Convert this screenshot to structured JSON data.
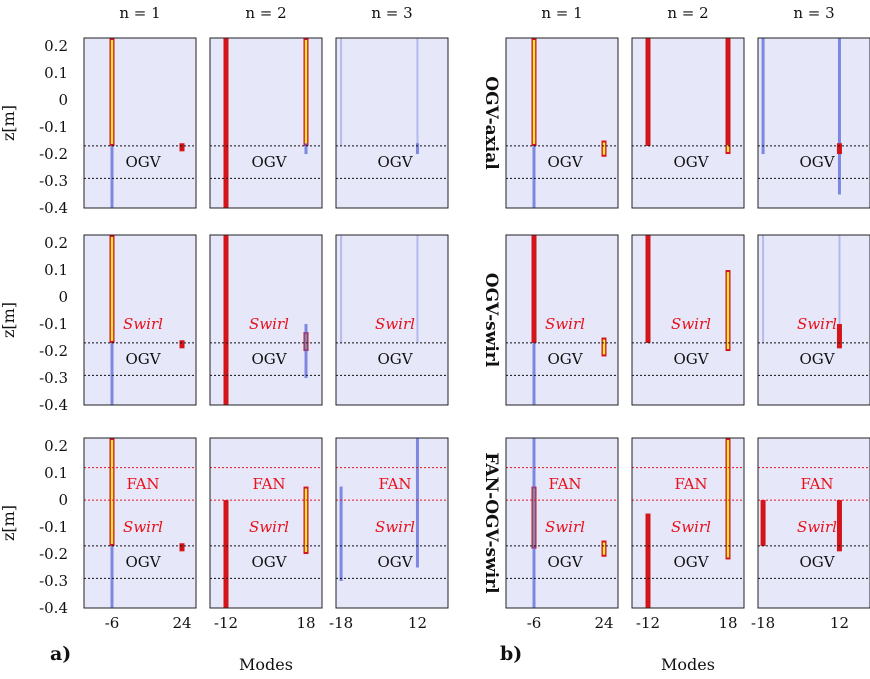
{
  "figure": {
    "col_titles": [
      "n = 1",
      "n = 2",
      "n = 3",
      "n = 1",
      "n = 2",
      "n = 3"
    ],
    "row_labels": [
      "OGV-axial",
      "OGV-swirl",
      "FAN-OGV-swirl"
    ],
    "ylabel": "z[m]",
    "xlabel": "Modes",
    "panel_letters": [
      "a)",
      "b)"
    ]
  },
  "colors": {
    "background": "#e6e7f9",
    "mode_red": "#d3141a",
    "mode_core": "#f2ea3a",
    "mode_blue": "#5a68d8",
    "mode_dark": "#1a1a6e",
    "ogv_line": "#111111",
    "fan_line": "#e8101a",
    "annotation_red": "#e8101a"
  },
  "chart_data": {
    "type": "heatmap",
    "ylim": [
      -0.4,
      0.23
    ],
    "yticks": [
      0.2,
      0.1,
      0,
      -0.1,
      -0.2,
      -0.3,
      -0.4
    ],
    "ytick_labels": [
      "0.2",
      "0.1",
      "0",
      "-0.1",
      "-0.2",
      "-0.3",
      "-0.4"
    ],
    "ogv_lines_z": [
      -0.17,
      -0.29
    ],
    "fan_lines_z": [
      0.12,
      0.0
    ],
    "columns": [
      {
        "group": "a",
        "n": 1,
        "title": "n = 1",
        "xlim": [
          -18,
          30
        ],
        "xticks": [
          -6,
          24
        ],
        "xtick_labels": [
          "-6",
          "24"
        ]
      },
      {
        "group": "a",
        "n": 2,
        "title": "n = 2",
        "xlim": [
          -18,
          24
        ],
        "xticks": [
          -12,
          18
        ],
        "xtick_labels": [
          "-12",
          "18"
        ]
      },
      {
        "group": "a",
        "n": 3,
        "title": "n = 3",
        "xlim": [
          -20,
          24
        ],
        "xticks": [
          -18,
          12
        ],
        "xtick_labels": [
          "-18",
          "12"
        ]
      },
      {
        "group": "b",
        "n": 1,
        "title": "n = 1",
        "xlim": [
          -18,
          30
        ],
        "xticks": [
          -6,
          24
        ],
        "xtick_labels": [
          "-6",
          "24"
        ]
      },
      {
        "group": "b",
        "n": 2,
        "title": "n = 2",
        "xlim": [
          -18,
          24
        ],
        "xticks": [
          -12,
          18
        ],
        "xtick_labels": [
          "-12",
          "18"
        ]
      },
      {
        "group": "b",
        "n": 3,
        "title": "n = 3",
        "xlim": [
          -20,
          24
        ],
        "xticks": [
          -18,
          12
        ],
        "xtick_labels": [
          "-18",
          "12"
        ]
      }
    ],
    "rows": [
      {
        "label": "OGV-axial",
        "annotations": [
          "OGV"
        ],
        "has_fan": false,
        "panels": [
          {
            "modes": [
              {
                "mode": -6,
                "z_from": -0.17,
                "z_to": 0.23,
                "color": "red",
                "core": true
              },
              {
                "mode": -6,
                "z_from": -0.4,
                "z_to": -0.17,
                "color": "blue"
              },
              {
                "mode": 24,
                "z_from": -0.19,
                "z_to": -0.16,
                "color": "red"
              }
            ]
          },
          {
            "modes": [
              {
                "mode": -12,
                "z_from": -0.4,
                "z_to": 0.23,
                "color": "red"
              },
              {
                "mode": 18,
                "z_from": -0.17,
                "z_to": 0.23,
                "color": "red",
                "core": true
              },
              {
                "mode": 18,
                "z_from": -0.2,
                "z_to": -0.16,
                "color": "blue"
              }
            ]
          },
          {
            "modes": [
              {
                "mode": -18,
                "z_from": -0.17,
                "z_to": 0.23,
                "color": "faint"
              },
              {
                "mode": 12,
                "z_from": -0.17,
                "z_to": 0.23,
                "color": "faint"
              },
              {
                "mode": 12,
                "z_from": -0.2,
                "z_to": -0.16,
                "color": "blue"
              }
            ]
          },
          {
            "modes": [
              {
                "mode": -6,
                "z_from": -0.17,
                "z_to": 0.23,
                "color": "red",
                "core": true
              },
              {
                "mode": -6,
                "z_from": -0.4,
                "z_to": -0.17,
                "color": "blue"
              },
              {
                "mode": 24,
                "z_from": -0.21,
                "z_to": -0.15,
                "color": "red",
                "core": true
              }
            ]
          },
          {
            "modes": [
              {
                "mode": -12,
                "z_from": -0.17,
                "z_to": 0.23,
                "color": "red"
              },
              {
                "mode": 18,
                "z_from": -0.17,
                "z_to": 0.23,
                "color": "red"
              },
              {
                "mode": 18,
                "z_from": -0.2,
                "z_to": -0.16,
                "color": "red",
                "core": true
              }
            ]
          },
          {
            "modes": [
              {
                "mode": -18,
                "z_from": -0.2,
                "z_to": 0.23,
                "color": "blue"
              },
              {
                "mode": 12,
                "z_from": -0.35,
                "z_to": 0.23,
                "color": "blue"
              },
              {
                "mode": 12,
                "z_from": -0.2,
                "z_to": -0.16,
                "color": "red"
              }
            ]
          }
        ]
      },
      {
        "label": "OGV-swirl",
        "annotations": [
          "Swirl",
          "OGV"
        ],
        "has_fan": false,
        "panels": [
          {
            "modes": [
              {
                "mode": -6,
                "z_from": -0.17,
                "z_to": 0.23,
                "color": "red",
                "core": true
              },
              {
                "mode": -6,
                "z_from": -0.4,
                "z_to": -0.17,
                "color": "blue"
              },
              {
                "mode": 24,
                "z_from": -0.19,
                "z_to": -0.16,
                "color": "red"
              }
            ]
          },
          {
            "modes": [
              {
                "mode": -12,
                "z_from": -0.4,
                "z_to": 0.23,
                "color": "red"
              },
              {
                "mode": 18,
                "z_from": -0.2,
                "z_to": -0.13,
                "color": "red",
                "core": true
              },
              {
                "mode": 18,
                "z_from": -0.3,
                "z_to": -0.1,
                "color": "blue"
              }
            ]
          },
          {
            "modes": [
              {
                "mode": -18,
                "z_from": -0.17,
                "z_to": 0.23,
                "color": "faint"
              },
              {
                "mode": 12,
                "z_from": -0.17,
                "z_to": 0.23,
                "color": "faint"
              }
            ]
          },
          {
            "modes": [
              {
                "mode": -6,
                "z_from": -0.17,
                "z_to": 0.23,
                "color": "red"
              },
              {
                "mode": -6,
                "z_from": -0.4,
                "z_to": -0.17,
                "color": "blue"
              },
              {
                "mode": 24,
                "z_from": -0.22,
                "z_to": -0.15,
                "color": "red",
                "core": true
              }
            ]
          },
          {
            "modes": [
              {
                "mode": -12,
                "z_from": -0.17,
                "z_to": 0.23,
                "color": "red"
              },
              {
                "mode": 18,
                "z_from": -0.2,
                "z_to": 0.1,
                "color": "red",
                "core": true
              }
            ]
          },
          {
            "modes": [
              {
                "mode": -18,
                "z_from": -0.17,
                "z_to": 0.23,
                "color": "faint"
              },
              {
                "mode": 12,
                "z_from": -0.17,
                "z_to": 0.23,
                "color": "faint"
              },
              {
                "mode": 12,
                "z_from": -0.19,
                "z_to": -0.1,
                "color": "red"
              }
            ]
          }
        ]
      },
      {
        "label": "FAN-OGV-swirl",
        "annotations": [
          "FAN",
          "Swirl",
          "OGV"
        ],
        "has_fan": true,
        "panels": [
          {
            "modes": [
              {
                "mode": -6,
                "z_from": -0.17,
                "z_to": 0.23,
                "color": "red",
                "core": true
              },
              {
                "mode": -6,
                "z_from": -0.4,
                "z_to": -0.17,
                "color": "blue"
              },
              {
                "mode": 24,
                "z_from": -0.19,
                "z_to": -0.16,
                "color": "red"
              }
            ]
          },
          {
            "modes": [
              {
                "mode": -12,
                "z_from": -0.4,
                "z_to": 0.0,
                "color": "red"
              },
              {
                "mode": 18,
                "z_from": -0.2,
                "z_to": 0.05,
                "color": "red",
                "core": true
              }
            ]
          },
          {
            "modes": [
              {
                "mode": -18,
                "z_from": -0.3,
                "z_to": 0.05,
                "color": "blue"
              },
              {
                "mode": 12,
                "z_from": -0.25,
                "z_to": 0.23,
                "color": "blue"
              }
            ]
          },
          {
            "modes": [
              {
                "mode": -6,
                "z_from": -0.18,
                "z_to": 0.05,
                "color": "red",
                "core": true
              },
              {
                "mode": -6,
                "z_from": -0.4,
                "z_to": 0.23,
                "color": "blue"
              },
              {
                "mode": 24,
                "z_from": -0.21,
                "z_to": -0.15,
                "color": "red",
                "core": true
              }
            ]
          },
          {
            "modes": [
              {
                "mode": -12,
                "z_from": -0.4,
                "z_to": -0.05,
                "color": "red"
              },
              {
                "mode": 18,
                "z_from": -0.22,
                "z_to": 0.23,
                "color": "red",
                "core": true
              }
            ]
          },
          {
            "modes": [
              {
                "mode": -18,
                "z_from": -0.17,
                "z_to": 0.0,
                "color": "red"
              },
              {
                "mode": 12,
                "z_from": -0.19,
                "z_to": 0.0,
                "color": "red"
              }
            ]
          }
        ]
      }
    ]
  }
}
